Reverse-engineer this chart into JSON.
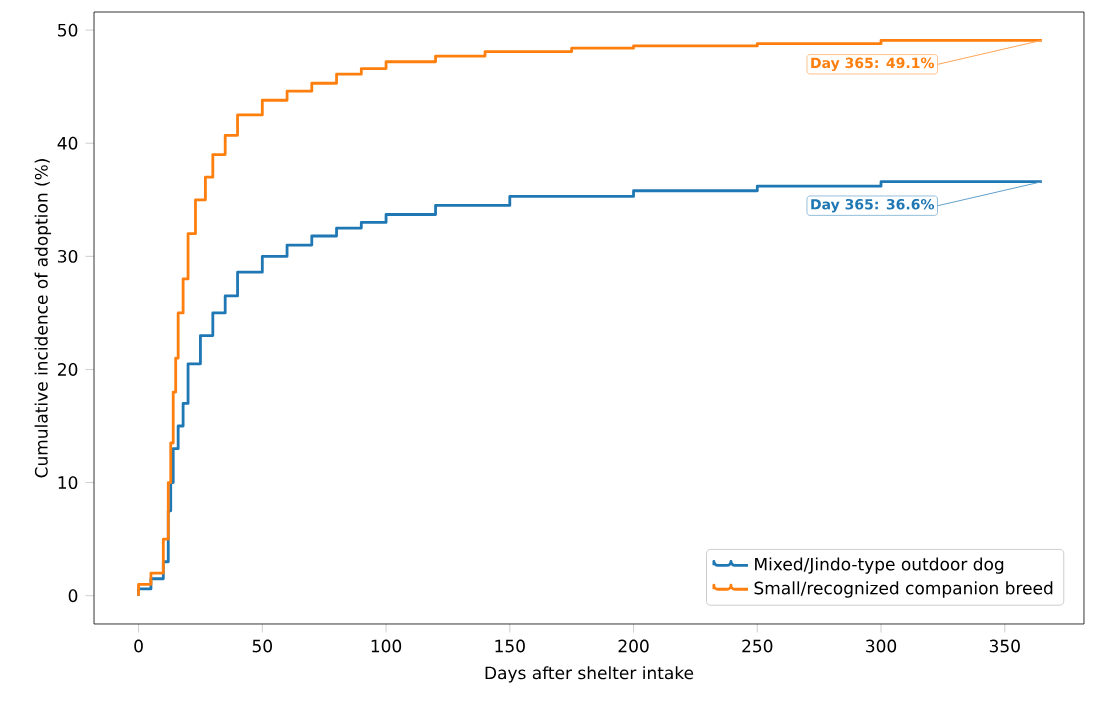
{
  "chart_data": {
    "type": "step",
    "xlabel": "Days after shelter intake",
    "ylabel": "Cumulative incidence of adoption (%)",
    "xlim": [
      -18,
      382
    ],
    "ylim": [
      -2.5,
      51.6
    ],
    "xticks": [
      0,
      50,
      100,
      150,
      200,
      250,
      300,
      350
    ],
    "yticks": [
      0,
      10,
      20,
      30,
      40,
      50
    ],
    "grid": false,
    "legend": "bottom right",
    "marker": "none",
    "line_style": "solid",
    "series": [
      {
        "name": "Mixed/Jindo-type outdoor dog",
        "color": "#1f77b4",
        "x": [
          0,
          5,
          10,
          12,
          13,
          14,
          16,
          18,
          20,
          25,
          30,
          35,
          40,
          50,
          60,
          70,
          80,
          90,
          100,
          120,
          150,
          200,
          250,
          300,
          365
        ],
        "values": [
          0,
          0.6,
          1.5,
          3,
          7.5,
          10,
          13,
          15,
          17,
          20.5,
          23,
          25,
          26.5,
          28.6,
          30,
          31,
          31.8,
          32.5,
          33,
          33.7,
          34.5,
          35.3,
          35.8,
          36.2,
          36.6
        ]
      },
      {
        "name": "Small/recognized companion breed",
        "color": "#ff7f0e",
        "x": [
          0,
          5,
          10,
          12,
          13,
          14,
          15,
          16,
          18,
          20,
          23,
          27,
          30,
          35,
          40,
          50,
          60,
          70,
          80,
          90,
          100,
          120,
          140,
          175,
          200,
          250,
          300,
          365
        ],
        "values": [
          0,
          1,
          2,
          5,
          10,
          13.5,
          18,
          21,
          25,
          28,
          32,
          35,
          37,
          39,
          40.7,
          42.5,
          43.8,
          44.6,
          45.3,
          46.1,
          46.6,
          47.2,
          47.7,
          48.1,
          48.4,
          48.6,
          48.8,
          49.1
        ]
      }
    ],
    "annotations": [
      {
        "text": "Day 365: 36.6%",
        "x": 365,
        "y": 36.6
      },
      {
        "text": "Day 365: 49.1%",
        "x": 365,
        "y": 49.1
      }
    ]
  }
}
